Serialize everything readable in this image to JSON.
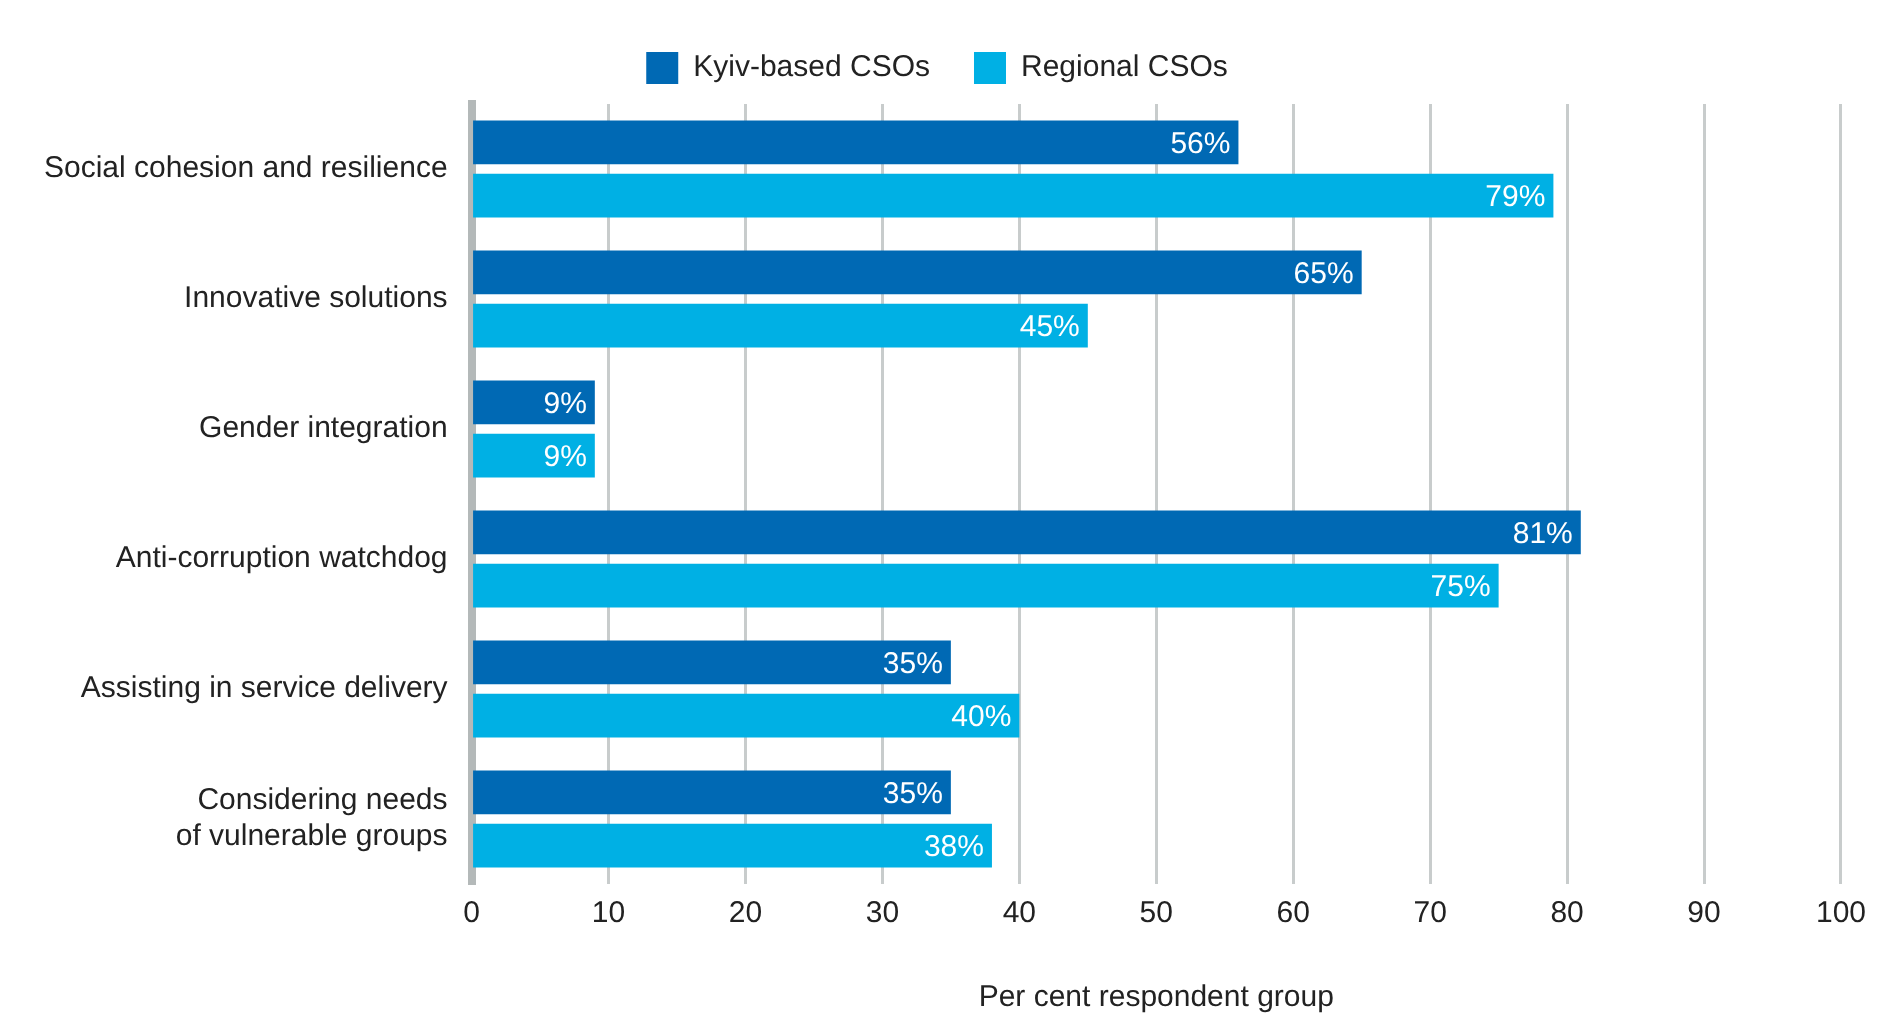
{
  "chart_data": {
    "type": "bar",
    "orientation": "horizontal",
    "xlabel": "Per cent respondent group",
    "categories": [
      "Social cohesion and resilience",
      "Innovative solutions",
      "Gender integration",
      "Anti-corruption watchdog",
      "Assisting in service delivery",
      "Considering needs of vulnerable groups"
    ],
    "series": [
      {
        "name": "Kyiv-based CSOs",
        "color": "#0069b4",
        "values": [
          56,
          65,
          9,
          81,
          35,
          35
        ],
        "value_labels": [
          "56%",
          "65%",
          "9%",
          "81%",
          "35%",
          "35%"
        ]
      },
      {
        "name": "Regional CSOs",
        "color": "#00b0e4",
        "values": [
          79,
          45,
          9,
          75,
          40,
          38
        ],
        "value_labels": [
          "79%",
          "45%",
          "9%",
          "75%",
          "40%",
          "38%"
        ]
      }
    ],
    "xlim": [
      0,
      100
    ],
    "xticks": [
      0,
      10,
      20,
      30,
      40,
      50,
      60,
      70,
      80,
      90,
      100
    ],
    "grid": "x",
    "legend": "top"
  }
}
